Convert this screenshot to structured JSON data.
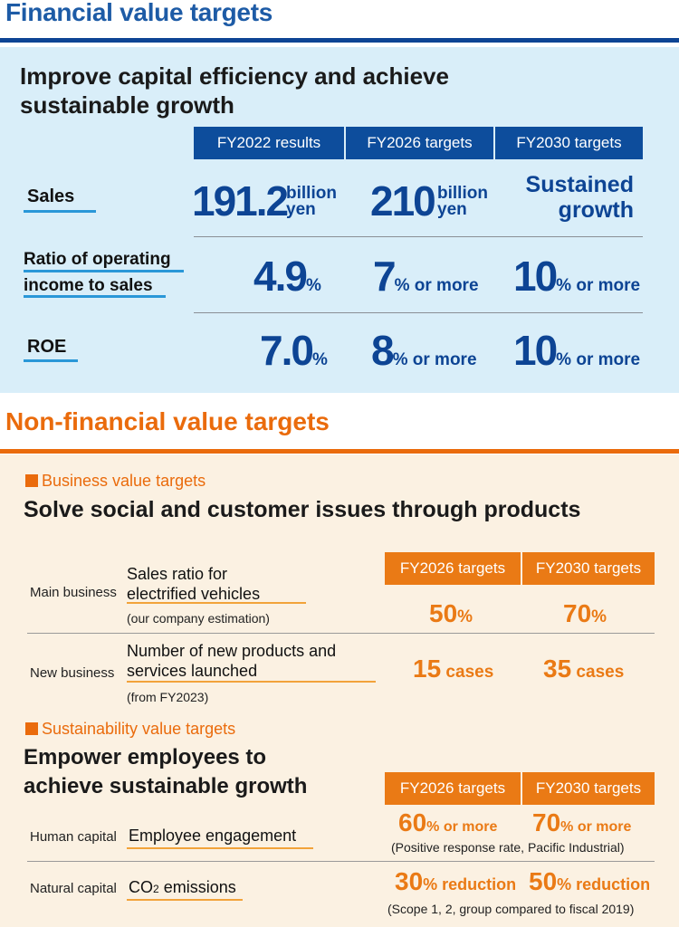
{
  "financial": {
    "heading": "Financial value targets",
    "subtitle": "Improve capital efficiency and achieve sustainable growth",
    "columns": [
      "FY2022 results",
      "FY2026 targets",
      "FY2030 targets"
    ],
    "rows": [
      {
        "label": "Sales",
        "v1": "191.2",
        "u1a": "billion",
        "u1b": "yen",
        "v2": "210",
        "u2a": "billion",
        "u2b": "yen",
        "v3a": "Sustained",
        "v3b": "growth"
      },
      {
        "label_a": "Ratio of operating",
        "label_b": "income to sales",
        "v1": "4.9",
        "u1": "%",
        "v2": "7",
        "u2": "% or more",
        "v3": "10",
        "u3": "% or more"
      },
      {
        "label": "ROE",
        "v1": "7.0",
        "u1": "%",
        "v2": "8",
        "u2": "% or more",
        "v3": "10",
        "u3": "% or more"
      }
    ]
  },
  "nonfinancial": {
    "heading": "Non-financial value targets",
    "business": {
      "category": "Business value targets",
      "subtitle": "Solve social and customer issues through products",
      "columns": [
        "FY2026 targets",
        "FY2030 targets"
      ],
      "rows": [
        {
          "type": "Main business",
          "item_a": "Sales ratio for",
          "item_b": "electrified vehicles",
          "note": "(our company estimation)",
          "v1": "50",
          "u1": "%",
          "v2": "70",
          "u2": "%"
        },
        {
          "type": "New business",
          "item_a": "Number of new products and",
          "item_b": "services launched",
          "note": "(from FY2023)",
          "v1": "15",
          "u1": " cases",
          "v2": "35",
          "u2": " cases"
        }
      ]
    },
    "sustainability": {
      "category": "Sustainability value targets",
      "subtitle_a": "Empower employees to",
      "subtitle_b": "achieve sustainable growth",
      "columns": [
        "FY2026 targets",
        "FY2030 targets"
      ],
      "rows": [
        {
          "type": "Human capital",
          "item": "Employee engagement",
          "v1": "60",
          "u1": "% or more",
          "v2": "70",
          "u2": "% or more",
          "note": "(Positive response rate, Pacific Industrial)"
        },
        {
          "type": "Natural capital",
          "item_pre": "CO",
          "item_sub": "2",
          "item_post": " emissions",
          "v1": "30",
          "u1": "% reduction",
          "v2": "50",
          "u2": "% reduction",
          "note": "(Scope 1, 2, group compared to fiscal 2019)"
        }
      ]
    }
  }
}
